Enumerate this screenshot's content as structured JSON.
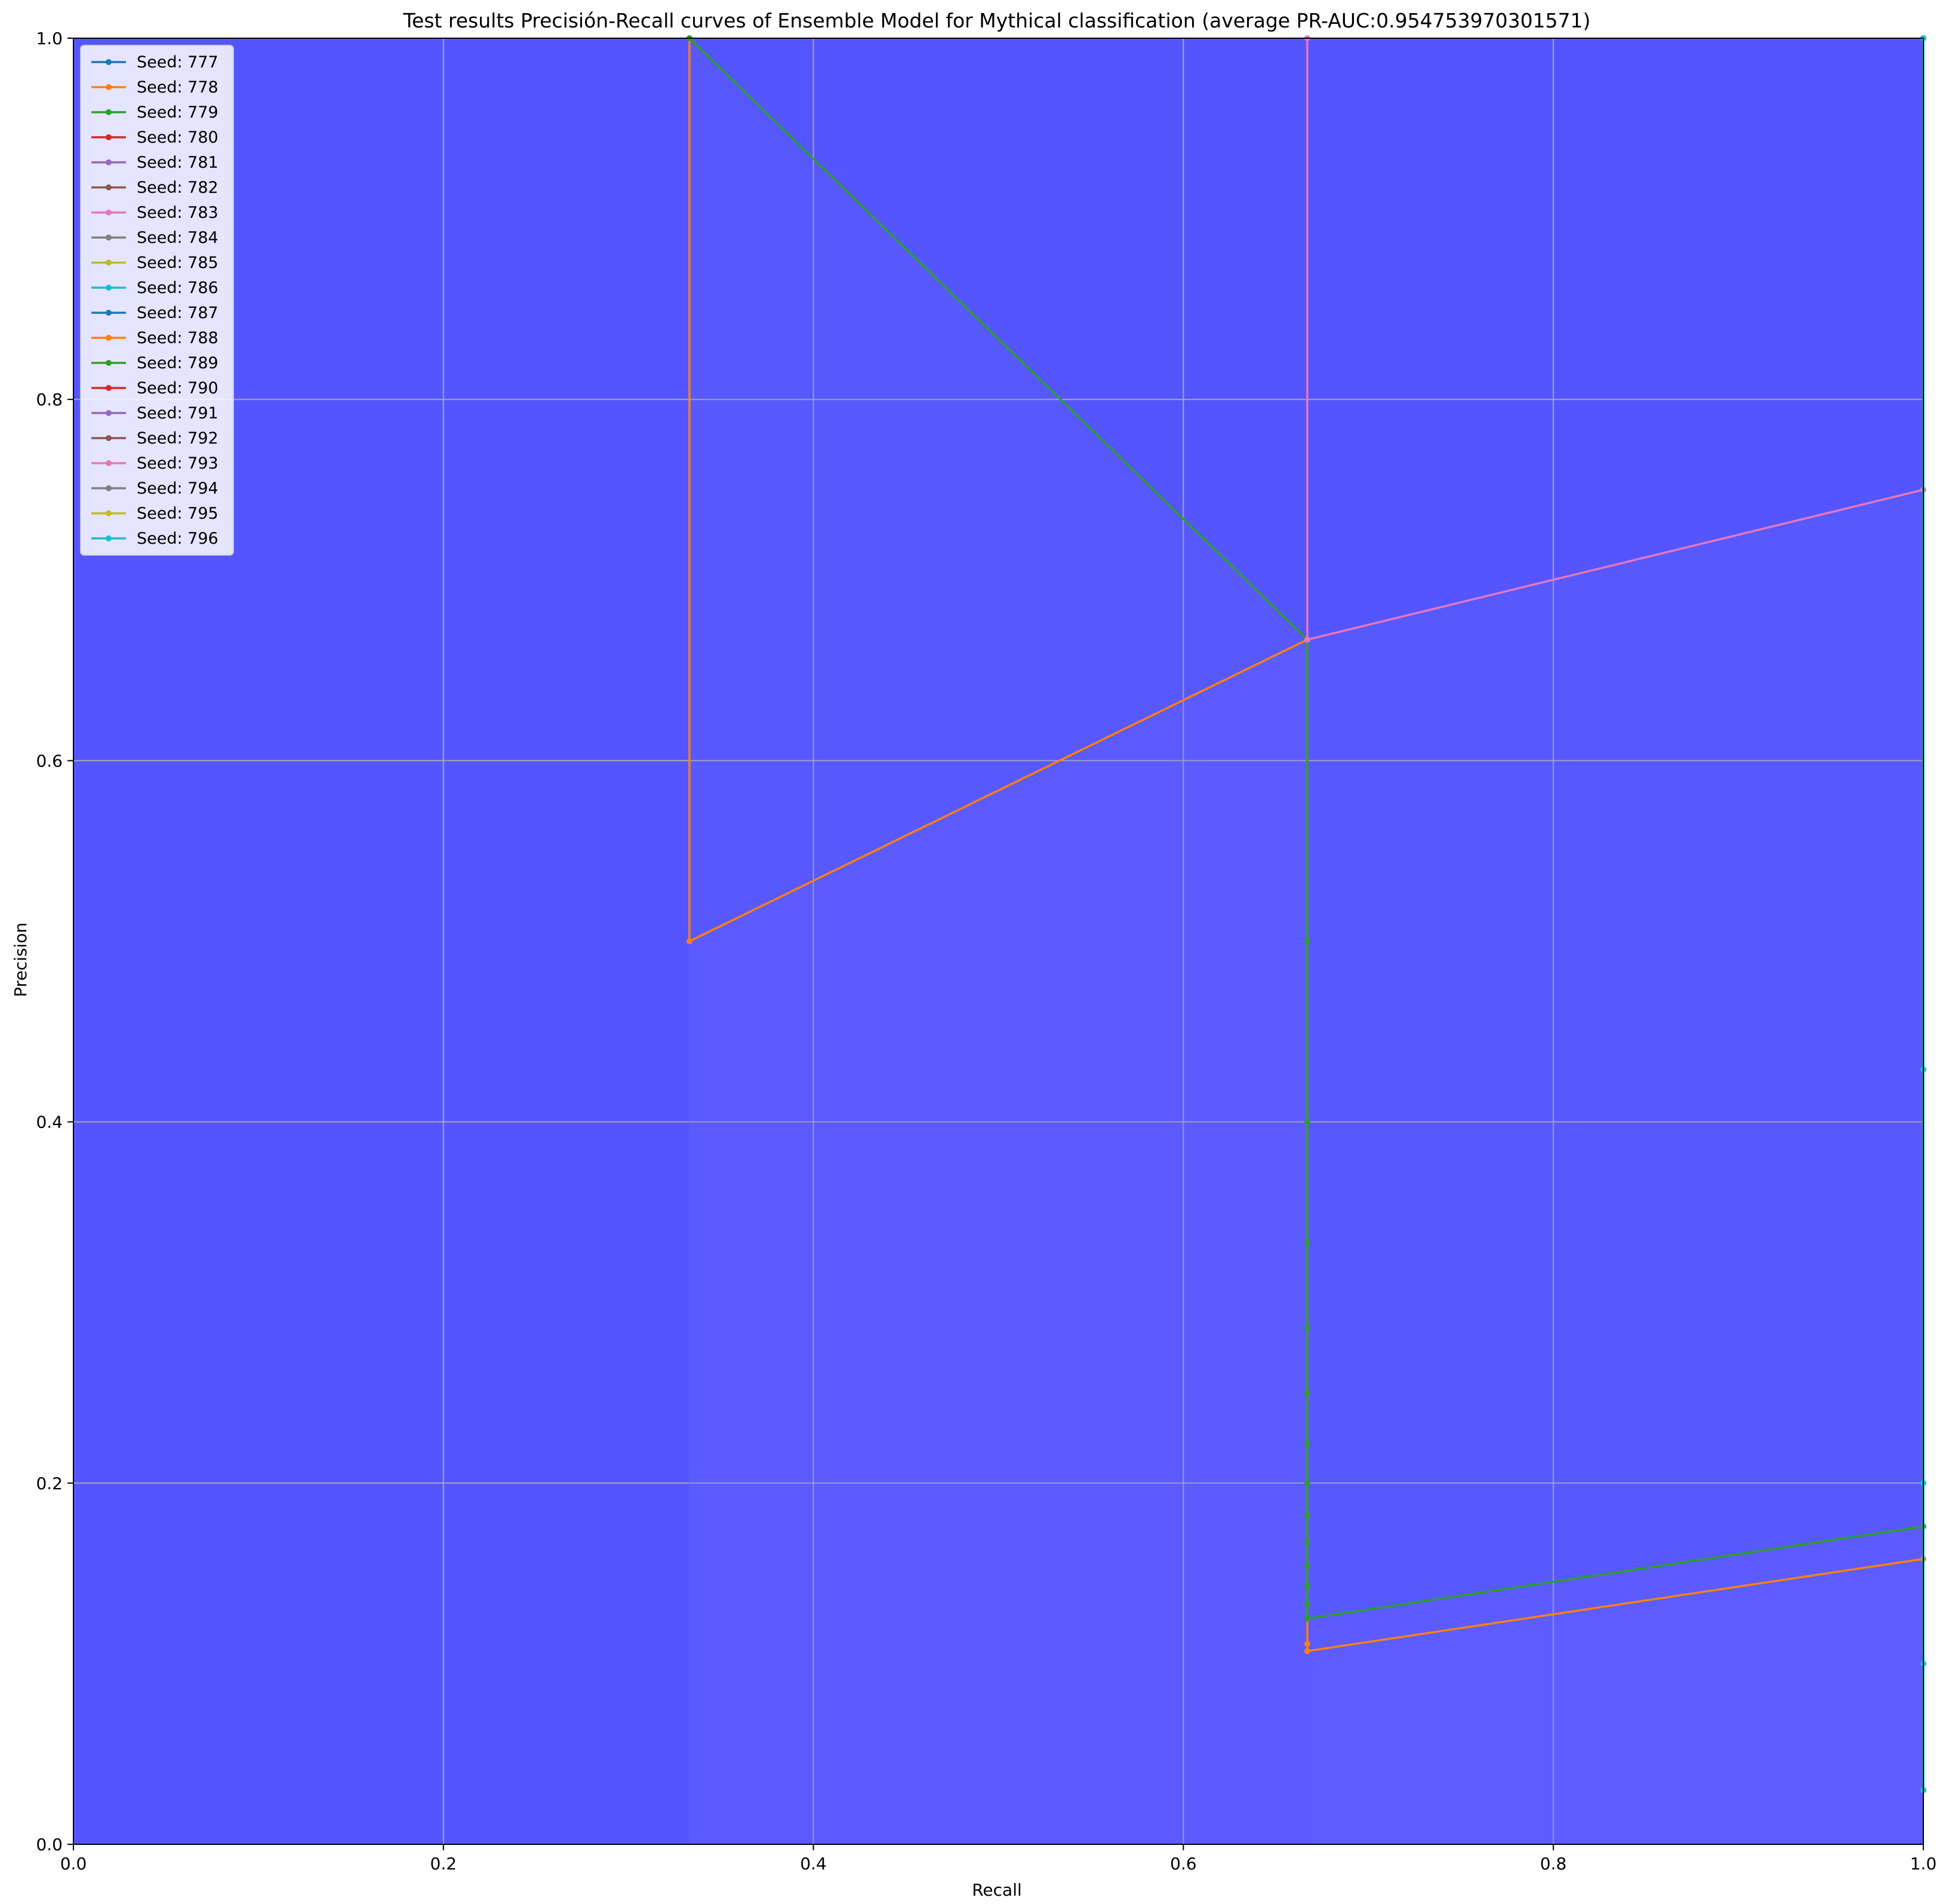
{
  "chart_data": {
    "type": "line",
    "title": "Test results Precisión-Recall curves of Ensemble Model for Mythical classification (average PR-AUC:0.954753970301571)",
    "xlabel": "Recall",
    "ylabel": "Precision",
    "xlim": [
      0,
      1
    ],
    "ylim": [
      0,
      1
    ],
    "x_ticks": [
      "0.0",
      "0.2",
      "0.4",
      "0.6",
      "0.8",
      "1.0"
    ],
    "y_ticks": [
      "0.0",
      "0.2",
      "0.4",
      "0.6",
      "0.8",
      "1.0"
    ],
    "grid": true,
    "legend_placement": "upper-left",
    "background_color": "#5555ff",
    "series": [
      {
        "name": "Seed: 777",
        "color": "#1f77b4",
        "points": [
          [
            1,
            0.03
          ],
          [
            1,
            1.0
          ]
        ]
      },
      {
        "name": "Seed: 778",
        "color": "#ff7f0e",
        "points": [
          [
            0.333,
            1.0
          ],
          [
            0.333,
            0.5
          ],
          [
            0.667,
            0.667
          ],
          [
            0.667,
            0.111
          ],
          [
            0.667,
            0.107
          ],
          [
            1,
            0.158
          ]
        ]
      },
      {
        "name": "Seed: 779",
        "color": "#2ca02c",
        "points": [
          [
            0.333,
            1.0
          ],
          [
            0.667,
            0.667
          ],
          [
            0.667,
            0.5
          ],
          [
            0.667,
            0.4
          ],
          [
            0.667,
            0.333
          ],
          [
            0.667,
            0.286
          ],
          [
            0.667,
            0.25
          ],
          [
            0.667,
            0.222
          ],
          [
            0.667,
            0.2
          ],
          [
            0.667,
            0.182
          ],
          [
            0.667,
            0.167
          ],
          [
            0.667,
            0.154
          ],
          [
            0.667,
            0.143
          ],
          [
            0.667,
            0.133
          ],
          [
            0.667,
            0.125
          ],
          [
            1,
            0.176
          ]
        ]
      },
      {
        "name": "Seed: 780",
        "color": "#d62728",
        "points": [
          [
            1,
            0.03
          ],
          [
            1,
            1.0
          ]
        ]
      },
      {
        "name": "Seed: 781",
        "color": "#9467bd",
        "points": [
          [
            1,
            0.03
          ],
          [
            1,
            1.0
          ]
        ]
      },
      {
        "name": "Seed: 782",
        "color": "#8c564b",
        "points": [
          [
            1,
            0.03
          ],
          [
            1,
            1.0
          ]
        ]
      },
      {
        "name": "Seed: 783",
        "color": "#e377c2",
        "points": [
          [
            0.667,
            1.0
          ],
          [
            0.667,
            0.667
          ],
          [
            1,
            0.75
          ]
        ]
      },
      {
        "name": "Seed: 784",
        "color": "#7f7f7f",
        "points": [
          [
            1,
            0.03
          ],
          [
            1,
            1.0
          ]
        ]
      },
      {
        "name": "Seed: 785",
        "color": "#bcbd22",
        "points": [
          [
            1,
            0.03
          ],
          [
            1,
            1.0
          ]
        ]
      },
      {
        "name": "Seed: 786",
        "color": "#17becf",
        "points": [
          [
            1,
            0.03
          ],
          [
            1,
            0.429
          ],
          [
            1,
            1.0
          ]
        ]
      },
      {
        "name": "Seed: 787",
        "color": "#1f77b4",
        "points": [
          [
            1,
            0.03
          ],
          [
            1,
            1.0
          ]
        ]
      },
      {
        "name": "Seed: 788",
        "color": "#ff7f0e",
        "points": [
          [
            1,
            0.03
          ],
          [
            1,
            1.0
          ]
        ]
      },
      {
        "name": "Seed: 789",
        "color": "#2ca02c",
        "points": [
          [
            1,
            0.03
          ],
          [
            1,
            1.0
          ]
        ]
      },
      {
        "name": "Seed: 790",
        "color": "#d62728",
        "points": [
          [
            1,
            0.03
          ],
          [
            1,
            1.0
          ]
        ]
      },
      {
        "name": "Seed: 791",
        "color": "#9467bd",
        "points": [
          [
            1,
            0.03
          ],
          [
            1,
            1.0
          ]
        ]
      },
      {
        "name": "Seed: 792",
        "color": "#8c564b",
        "points": [
          [
            1,
            0.03
          ],
          [
            1,
            1.0
          ]
        ]
      },
      {
        "name": "Seed: 793",
        "color": "#e377c2",
        "points": [
          [
            1,
            0.03
          ],
          [
            1,
            1.0
          ]
        ]
      },
      {
        "name": "Seed: 794",
        "color": "#7f7f7f",
        "points": [
          [
            1,
            0.03
          ],
          [
            1,
            1.0
          ]
        ]
      },
      {
        "name": "Seed: 795",
        "color": "#bcbd22",
        "points": [
          [
            1,
            0.03
          ],
          [
            1,
            1.0
          ]
        ]
      },
      {
        "name": "Seed: 796",
        "color": "#17becf",
        "points": [
          [
            1,
            0.03
          ],
          [
            1,
            0.2
          ],
          [
            1,
            0.1
          ],
          [
            1,
            1.0
          ]
        ]
      }
    ]
  }
}
